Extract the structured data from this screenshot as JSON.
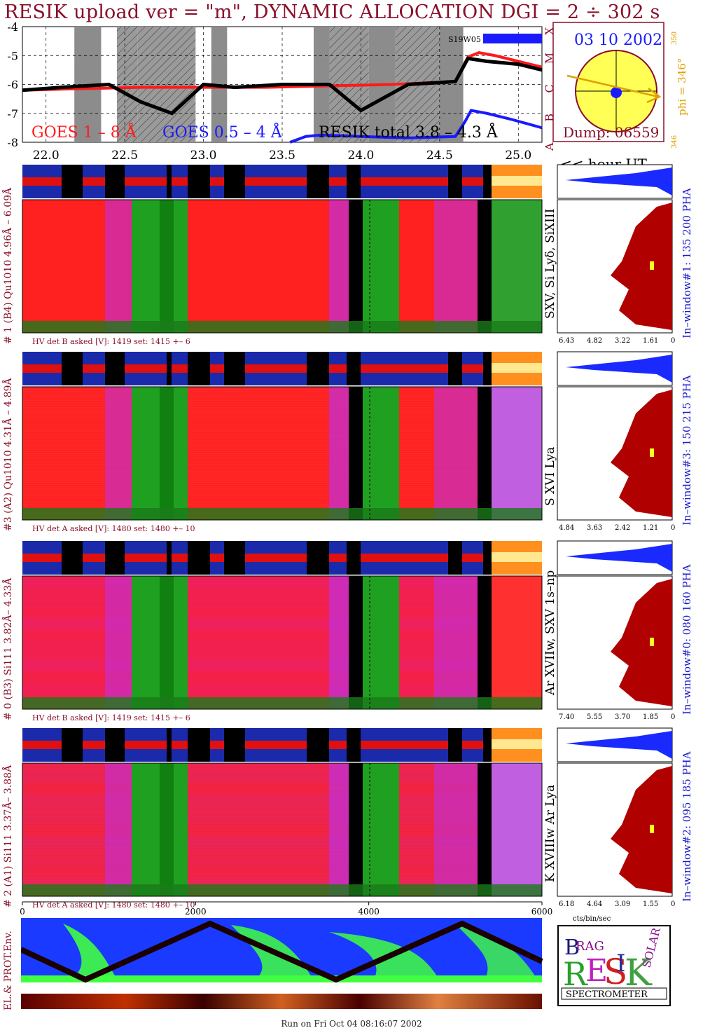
{
  "title": "RESIK upload ver = \"m\", DYNAMIC ALLOCATION  DGI =   2 ÷ 302 s",
  "lightcurve": {
    "y_ticks": [
      "-4",
      "-5",
      "-6",
      "-7",
      "-8"
    ],
    "x_ticks": [
      "22.0",
      "22.5",
      "23.0",
      "23.5",
      "24.0",
      "24.5",
      "25.0"
    ],
    "x_unit_label": "<< hour UT",
    "goes_letters": [
      "X",
      "M",
      "C",
      "B",
      "A"
    ],
    "region_label": "S19W05",
    "legend": {
      "goes_long": "GOES 1 – 8 Å",
      "goes_short": "GOES 0.5 – 4 Å",
      "resik": "RESIK total 3.8 – 4.3 Å"
    },
    "colors": {
      "goes_long": "#ff1a1a",
      "goes_short": "#1a1aff",
      "resik": "#000000",
      "shade": "#808080"
    }
  },
  "sun_box": {
    "date": "03 10 2002",
    "phi_label": "phi = 346°",
    "phi_tick_top": "350",
    "phi_tick_bottom": "346",
    "dump": "Dump: 06559"
  },
  "detectors": [
    {
      "left_label": "# 1 (B4) Qu1010 4.96Å – 6.09Å",
      "line_label": "SXV, Si Lyδ, SiXIII",
      "window_label": "In–window#1:  135 200 PHA",
      "hv_label": "HV det B asked [V]:  1419 set:  1415  +–    6",
      "hist_ticks": [
        "6.43",
        "4.82",
        "3.22",
        "1.61",
        "0.00"
      ]
    },
    {
      "left_label": "#3 (A2) Qu1010  4.31Å – 4.89Å",
      "line_label": "S XVI Lya",
      "window_label": "In–window#3:  150 215 PHA",
      "hv_label": "HV det A asked [V]:  1480 set:  1480  +–    10",
      "hist_ticks": [
        "4.84",
        "3.63",
        "2.42",
        "1.21",
        "0.00"
      ]
    },
    {
      "left_label": "# 0 (B3) Si111  3.82Å– 4.33Å",
      "line_label": "Ar XVIIw,  SXV 1s–np",
      "window_label": "In–window#0:  080 160 PHA",
      "hv_label": "HV det B asked [V]:  1419 set:  1415  +–    6",
      "hist_ticks": [
        "7.40",
        "5.55",
        "3.70",
        "1.85",
        "0.00"
      ]
    },
    {
      "left_label": "# 2 (A1) Si111  3.37Å– 3.88Å",
      "line_label": "K XVIIIw  Ar Lya",
      "window_label": "In–window#2:  095 185 PHA",
      "hv_label": "HV det A asked [V]:  1480 set:  1480  +–    10",
      "hist_ticks": [
        "6.18",
        "4.64",
        "3.09",
        "1.55",
        "0.00"
      ]
    }
  ],
  "bottom_axis": {
    "ticks": [
      "0",
      "2000",
      "4000",
      "6000"
    ],
    "hist_unit": "cts/bin/sec"
  },
  "env_label": "EL.& PROT.Env.",
  "logo": {
    "letters": "RESIK",
    "words": [
      "BRAG",
      "SOLAR"
    ],
    "caption": "SPECTROMETER"
  },
  "footer": "Run on Fri Oct 04 08:16:07 2002",
  "chart_data": [
    {
      "type": "line",
      "title": "RESIK upload ver = \"m\", DYNAMIC ALLOCATION  DGI =   2 ÷ 302 s",
      "xlabel": "<< hour UT",
      "ylabel": "",
      "xlim": [
        21.85,
        25.15
      ],
      "ylim": [
        -8,
        -4
      ],
      "grid": true,
      "legend_position": "bottom",
      "series": [
        {
          "name": "GOES 1 – 8 Å",
          "x": [
            21.85,
            22.2,
            22.6,
            23.0,
            23.4,
            23.8,
            24.2,
            24.6,
            24.68,
            24.75,
            24.85,
            25.0,
            25.15
          ],
          "y": [
            -6.2,
            -6.15,
            -6.1,
            -6.1,
            -6.1,
            -6.05,
            -6.0,
            -5.9,
            -5.05,
            -4.9,
            -5.0,
            -5.2,
            -5.4
          ]
        },
        {
          "name": "GOES 0.5 – 4 Å",
          "x": [
            23.55,
            23.65,
            23.75,
            24.0,
            24.3,
            24.6,
            24.66,
            24.7,
            24.8,
            24.95,
            25.15
          ],
          "y": [
            -8.0,
            -7.8,
            -7.75,
            -7.8,
            -7.85,
            -7.8,
            -7.3,
            -6.9,
            -7.0,
            -7.2,
            -7.5
          ]
        },
        {
          "name": "RESIK total 3.8 – 4.3 Å",
          "x": [
            21.85,
            22.1,
            22.4,
            22.6,
            22.8,
            23.0,
            23.2,
            23.5,
            23.8,
            24.0,
            24.3,
            24.6,
            24.68,
            24.8,
            25.0,
            25.15
          ],
          "y": [
            -6.2,
            -6.1,
            -6.0,
            -6.6,
            -7.0,
            -6.0,
            -6.1,
            -6.0,
            -6.0,
            -6.9,
            -6.0,
            -5.9,
            -5.1,
            -5.2,
            -5.3,
            -5.5
          ]
        }
      ]
    }
  ]
}
